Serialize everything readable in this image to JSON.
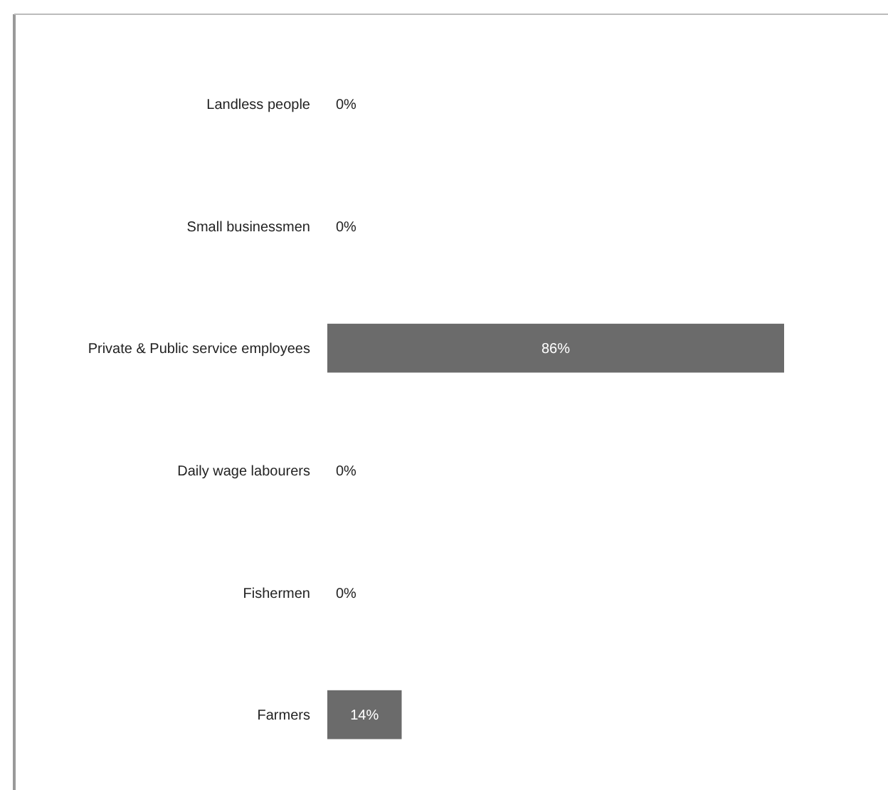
{
  "chart_data": {
    "type": "bar",
    "orientation": "horizontal",
    "categories": [
      "Landless people",
      "Small businessmen",
      "Private & Public service employees",
      "Daily wage labourers",
      "Fishermen",
      "Farmers"
    ],
    "values": [
      0,
      0,
      86,
      0,
      0,
      14
    ],
    "value_labels": [
      "0%",
      "0%",
      "86%",
      "0%",
      "0%",
      "14%"
    ],
    "color": "#6b6b6b",
    "tick_labels": "y"
  }
}
